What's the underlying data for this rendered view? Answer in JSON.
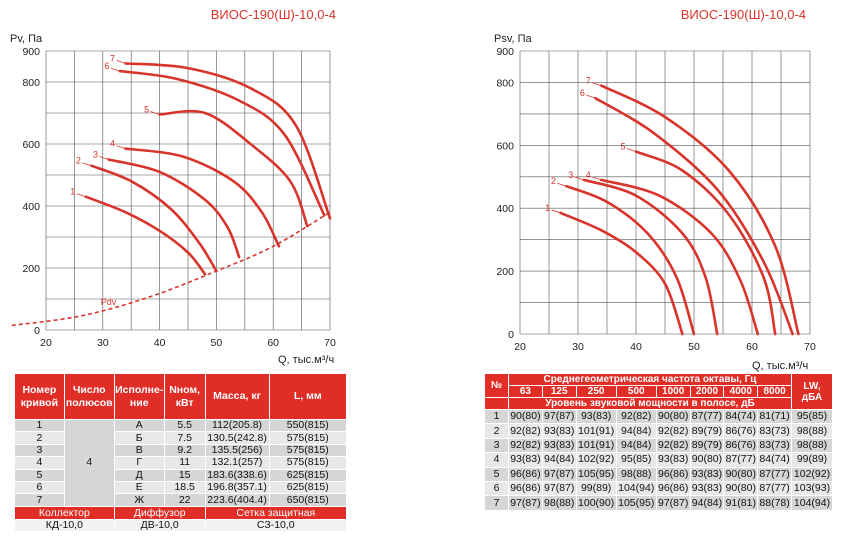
{
  "charts": [
    {
      "type": "line",
      "title": "ВИОС-190(Ш)-10,0-4",
      "ylabel": "Pv, Па",
      "xlabel": "Q, тыс.м³/ч",
      "xlim": [
        20,
        70
      ],
      "ylim": [
        0,
        900
      ],
      "xticks": [
        "20",
        "30",
        "40",
        "50",
        "60",
        "70"
      ],
      "yticks": [
        "0",
        "200",
        "400",
        "600",
        "800",
        "900"
      ],
      "curves": [
        {
          "label": "1",
          "points": [
            [
              27,
              430
            ],
            [
              34,
              380
            ],
            [
              40,
              320
            ],
            [
              45,
              250
            ],
            [
              48,
              180
            ]
          ]
        },
        {
          "label": "2",
          "points": [
            [
              28,
              530
            ],
            [
              35,
              480
            ],
            [
              42,
              390
            ],
            [
              47,
              280
            ],
            [
              50,
              190
            ]
          ]
        },
        {
          "label": "3",
          "points": [
            [
              31,
              550
            ],
            [
              40,
              510
            ],
            [
              48,
              420
            ],
            [
              52,
              330
            ],
            [
              54,
              235
            ]
          ]
        },
        {
          "label": "4",
          "points": [
            [
              34,
              585
            ],
            [
              44,
              560
            ],
            [
              53,
              480
            ],
            [
              58,
              380
            ],
            [
              61,
              270
            ]
          ]
        },
        {
          "label": "5",
          "points": [
            [
              40,
              695
            ],
            [
              48,
              700
            ],
            [
              56,
              600
            ],
            [
              63,
              480
            ],
            [
              66,
              335
            ]
          ]
        },
        {
          "label": "6",
          "points": [
            [
              33,
              835
            ],
            [
              43,
              810
            ],
            [
              54,
              740
            ],
            [
              62,
              630
            ],
            [
              69,
              370
            ]
          ]
        },
        {
          "label": "7",
          "points": [
            [
              34,
              860
            ],
            [
              45,
              845
            ],
            [
              56,
              780
            ],
            [
              64,
              660
            ],
            [
              70,
              360
            ]
          ]
        }
      ],
      "pdv": {
        "label": "Pdv",
        "points": [
          [
            14,
            15
          ],
          [
            26,
            45
          ],
          [
            38,
            105
          ],
          [
            50,
            190
          ],
          [
            60,
            270
          ],
          [
            70,
            380
          ]
        ]
      }
    },
    {
      "type": "line",
      "title": "ВИОС-190(Ш)-10,0-4",
      "ylabel": "Psv, Па",
      "xlabel": "Q, тыс.м³/ч",
      "xlim": [
        20,
        70
      ],
      "ylim": [
        0,
        900
      ],
      "xticks": [
        "20",
        "30",
        "40",
        "50",
        "60",
        "70"
      ],
      "yticks": [
        "0",
        "200",
        "400",
        "600",
        "800",
        "900"
      ],
      "curves": [
        {
          "label": "1",
          "points": [
            [
              27,
              385
            ],
            [
              34,
              330
            ],
            [
              40,
              260
            ],
            [
              45,
              160
            ],
            [
              48,
              0
            ]
          ]
        },
        {
          "label": "2",
          "points": [
            [
              28,
              470
            ],
            [
              35,
              420
            ],
            [
              42,
              320
            ],
            [
              47,
              180
            ],
            [
              50,
              0
            ]
          ]
        },
        {
          "label": "3",
          "points": [
            [
              31,
              490
            ],
            [
              40,
              440
            ],
            [
              48,
              320
            ],
            [
              52,
              180
            ],
            [
              54,
              0
            ]
          ]
        },
        {
          "label": "4",
          "points": [
            [
              34,
              490
            ],
            [
              44,
              440
            ],
            [
              53,
              320
            ],
            [
              58,
              170
            ],
            [
              61,
              0
            ]
          ]
        },
        {
          "label": "5",
          "points": [
            [
              40,
              580
            ],
            [
              48,
              520
            ],
            [
              56,
              380
            ],
            [
              62,
              180
            ],
            [
              64,
              0
            ]
          ]
        },
        {
          "label": "6",
          "points": [
            [
              33,
              750
            ],
            [
              43,
              640
            ],
            [
              54,
              460
            ],
            [
              62,
              230
            ],
            [
              67,
              0
            ]
          ]
        },
        {
          "label": "7",
          "points": [
            [
              34,
              790
            ],
            [
              45,
              690
            ],
            [
              56,
              520
            ],
            [
              64,
              280
            ],
            [
              68,
              0
            ]
          ]
        }
      ]
    }
  ],
  "table1": {
    "headers": [
      "Номер кривой",
      "Число полюсов",
      "Исполне-ние",
      "Nном, кВт",
      "Масса, кг",
      "L, мм"
    ],
    "poles": "4",
    "rows": [
      [
        "1",
        "А",
        "5.5",
        "112(205.8)",
        "550(815)"
      ],
      [
        "2",
        "Б",
        "7.5",
        "130.5(242.8)",
        "575(815)"
      ],
      [
        "3",
        "В",
        "9.2",
        "135.5(256)",
        "575(815)"
      ],
      [
        "4",
        "Г",
        "11",
        "132.1(257)",
        "575(815)"
      ],
      [
        "5",
        "Д",
        "15",
        "183.6(338.6)",
        "625(815)"
      ],
      [
        "6",
        "Е",
        "18.5",
        "196.8(357.1)",
        "625(815)"
      ],
      [
        "7",
        "Ж",
        "22",
        "223.6(404.4)",
        "650(815)"
      ]
    ],
    "footer_headers": [
      "Коллектор",
      "Диффузор",
      "Сетка защитная"
    ],
    "footer_values": [
      "КД-10,0",
      "ДВ-10,0",
      "СЗ-10,0"
    ]
  },
  "table2": {
    "col_num": "№",
    "freq_header": "Среднегеометрическая частота октавы, Гц",
    "freqs": [
      "63",
      "125",
      "250",
      "500",
      "1000",
      "2000",
      "4000",
      "8000"
    ],
    "lw_header": "LW, дБА",
    "level_header": "Уровень звуковой мощности в полосе, дБ",
    "rows": [
      [
        "1",
        "90(80)",
        "97(87)",
        "93(83)",
        "92(82)",
        "90(80)",
        "87(77)",
        "84(74)",
        "81(71)",
        "95(85)"
      ],
      [
        "2",
        "92(82)",
        "93(83)",
        "101(91)",
        "94(84)",
        "92(82)",
        "89(79)",
        "86(76)",
        "83(73)",
        "98(88)"
      ],
      [
        "3",
        "92(82)",
        "93(83)",
        "101(91)",
        "94(84)",
        "92(82)",
        "89(79)",
        "86(76)",
        "83(73)",
        "98(88)"
      ],
      [
        "4",
        "93(83)",
        "94(84)",
        "102(92)",
        "95(85)",
        "93(83)",
        "90(80)",
        "87(77)",
        "84(74)",
        "99(89)"
      ],
      [
        "5",
        "96(86)",
        "97(87)",
        "105(95)",
        "98(88)",
        "96(86)",
        "93(83)",
        "90(80)",
        "87(77)",
        "102(92)"
      ],
      [
        "6",
        "96(86)",
        "97(87)",
        "99(89)",
        "104(94)",
        "96(86)",
        "93(83)",
        "90(80)",
        "87(77)",
        "103(93)"
      ],
      [
        "7",
        "97(87)",
        "98(88)",
        "100(90)",
        "105(95)",
        "97(87)",
        "94(84)",
        "91(81)",
        "88(78)",
        "104(94)"
      ]
    ]
  }
}
